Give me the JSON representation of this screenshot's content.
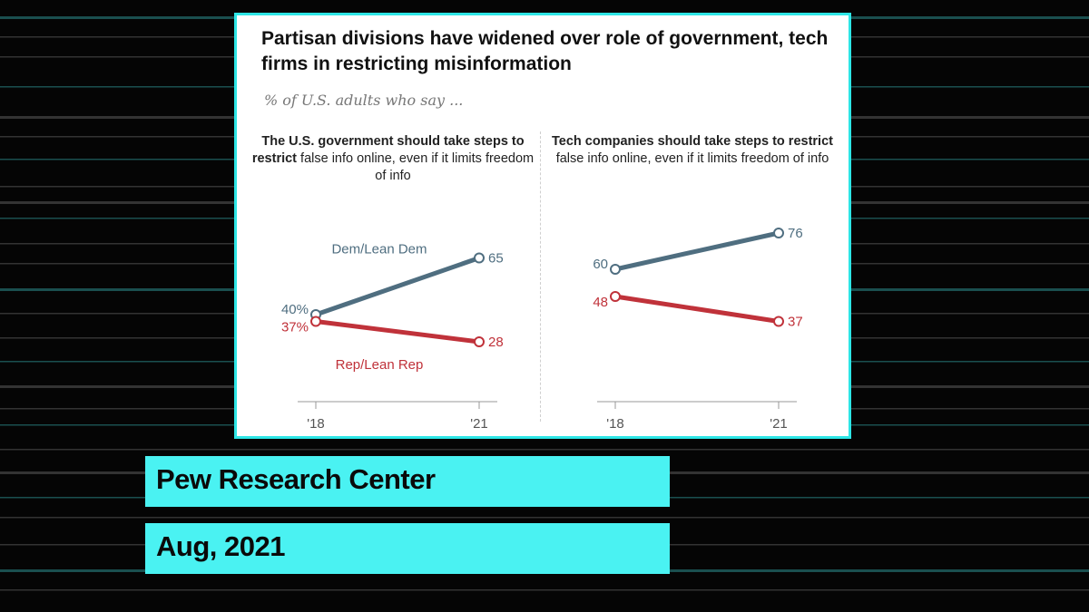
{
  "title": "Partisan divisions have widened over role of government, tech firms in restricting misinformation",
  "subtitle": "% of U.S. adults who say ...",
  "source_label": "Pew Research Center",
  "date_label": "Aug, 2021",
  "colors": {
    "dem": "#4f6e80",
    "rep": "#c0323a",
    "accent": "#4af2f2",
    "axis": "#888888"
  },
  "chart_data": [
    {
      "type": "line",
      "heading_bold": "The U.S. government should take steps to restrict",
      "heading_rest": "false info online, even if it limits freedom of info",
      "x": [
        "'18",
        "'21"
      ],
      "ylim": [
        0,
        100
      ],
      "series": [
        {
          "name": "Dem/Lean Dem",
          "values": [
            40,
            65
          ],
          "labels": [
            "40%",
            "65"
          ]
        },
        {
          "name": "Rep/Lean Rep",
          "values": [
            37,
            28
          ],
          "labels": [
            "37%",
            "28"
          ]
        }
      ]
    },
    {
      "type": "line",
      "heading_bold": "Tech companies should take steps to restrict",
      "heading_rest": "false info online, even if it limits freedom of info",
      "x": [
        "'18",
        "'21"
      ],
      "ylim": [
        0,
        100
      ],
      "series": [
        {
          "name": "",
          "values": [
            60,
            76
          ],
          "labels": [
            "60",
            "76"
          ]
        },
        {
          "name": "",
          "values": [
            48,
            37
          ],
          "labels": [
            "48",
            "37"
          ]
        }
      ]
    }
  ]
}
